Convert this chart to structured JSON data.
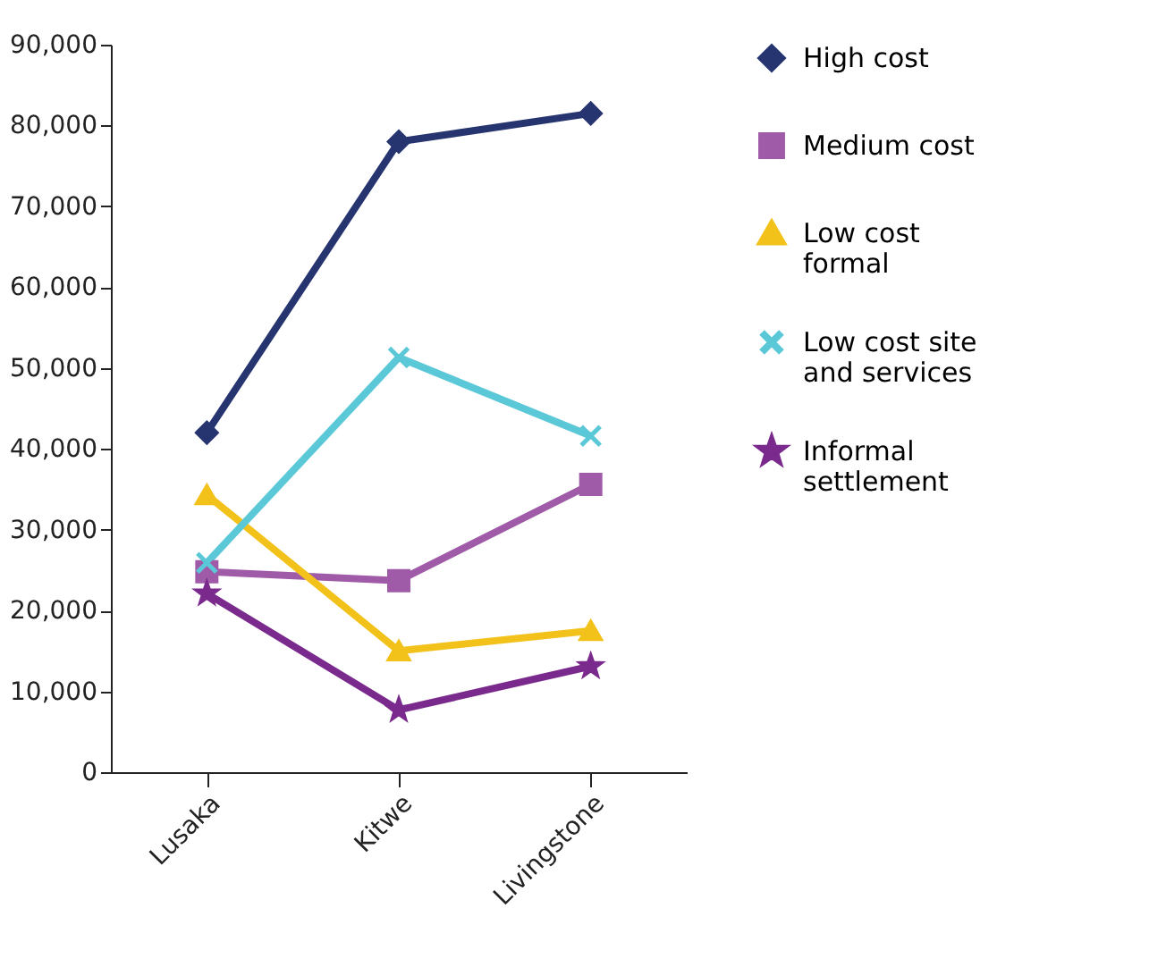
{
  "chart_data": {
    "type": "line",
    "categories": [
      "Lusaka",
      "Kitwe",
      "Livingstone"
    ],
    "series": [
      {
        "name": "High cost",
        "color": "#263570",
        "marker": "diamond",
        "values": [
          42000,
          78000,
          81500
        ]
      },
      {
        "name": "Medium cost",
        "color": "#a05ba8",
        "marker": "square",
        "values": [
          24800,
          23700,
          35600
        ]
      },
      {
        "name": "Low cost formal",
        "color": "#f2c21b",
        "marker": "triangle",
        "values": [
          34300,
          15000,
          17500
        ]
      },
      {
        "name": "Low cost site and services",
        "color": "#5bc8d8",
        "marker": "cross",
        "values": [
          25900,
          51300,
          41600
        ]
      },
      {
        "name": "Informal settlement",
        "color": "#7a2a8c",
        "marker": "star",
        "values": [
          22100,
          7700,
          13100
        ]
      }
    ],
    "ylim": [
      0,
      90000
    ],
    "yticks": [
      0,
      {
        "value": 10000,
        "label": "10,000"
      },
      {
        "value": 20000,
        "label": "20,000"
      },
      {
        "value": 30000,
        "label": "30,000"
      },
      {
        "value": 40000,
        "label": "40,000"
      },
      {
        "value": 50000,
        "label": "50,000"
      },
      {
        "value": 60000,
        "label": "60,000"
      },
      {
        "value": 70000,
        "label": "70,000"
      },
      {
        "value": 80000,
        "label": "80,000"
      },
      {
        "value": 90000,
        "label": "90,000"
      }
    ],
    "grid": false,
    "legend": "right",
    "line_style": "solid"
  }
}
